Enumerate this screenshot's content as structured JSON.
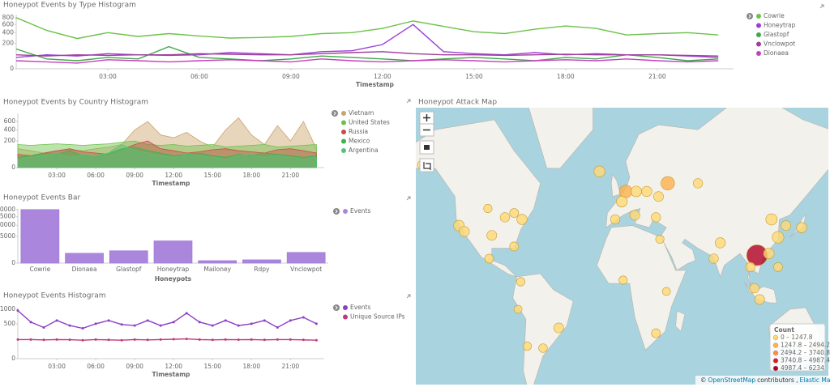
{
  "chart_data": [
    {
      "type": "line",
      "title": "Honeypot Events by Type Histogram",
      "x_label": "Timestamp",
      "scale": "sqrt",
      "x": [
        0,
        1,
        2,
        3,
        4,
        5,
        6,
        7,
        8,
        9,
        10,
        11,
        12,
        13,
        14,
        15,
        16,
        17,
        18,
        19,
        20,
        21,
        22,
        23
      ],
      "xlim": [
        0,
        23.5
      ],
      "xticks": [
        {
          "value": 3,
          "label": "03:00"
        },
        {
          "value": 6,
          "label": "06:00"
        },
        {
          "value": 9,
          "label": "09:00"
        },
        {
          "value": 12,
          "label": "12:00"
        },
        {
          "value": 15,
          "label": "15:00"
        },
        {
          "value": 18,
          "label": "18:00"
        },
        {
          "value": 21,
          "label": "21:00"
        }
      ],
      "ylim": [
        0,
        900
      ],
      "yticks": [
        0,
        200,
        400,
        600,
        800
      ],
      "series": [
        {
          "name": "Cowrie",
          "color": "#6cc24a",
          "values": [
            800,
            450,
            280,
            400,
            320,
            380,
            330,
            290,
            300,
            320,
            380,
            400,
            500,
            700,
            550,
            420,
            380,
            480,
            560,
            500,
            350,
            380,
            400,
            350
          ]
        },
        {
          "name": "Honeytrap",
          "color": "#9d3fd4",
          "values": [
            40,
            60,
            50,
            70,
            60,
            55,
            60,
            80,
            70,
            60,
            90,
            100,
            180,
            600,
            90,
            70,
            60,
            80,
            60,
            70,
            60,
            60,
            50,
            40
          ]
        },
        {
          "name": "Glastopf",
          "color": "#3fa84a",
          "values": [
            120,
            30,
            20,
            40,
            30,
            150,
            40,
            30,
            20,
            30,
            50,
            40,
            30,
            20,
            30,
            40,
            30,
            20,
            40,
            30,
            60,
            40,
            20,
            30
          ]
        },
        {
          "name": "Vnclowpot",
          "color": "#a0409a",
          "values": [
            60,
            50,
            60,
            55,
            60,
            60,
            70,
            65,
            60,
            60,
            70,
            80,
            90,
            70,
            60,
            60,
            55,
            60,
            65,
            60,
            60,
            60,
            55,
            50
          ]
        },
        {
          "name": "Dionaea",
          "color": "#c83fc0",
          "values": [
            20,
            15,
            10,
            25,
            20,
            15,
            20,
            25,
            20,
            15,
            30,
            20,
            15,
            20,
            25,
            20,
            15,
            20,
            25,
            20,
            30,
            20,
            15,
            20
          ]
        }
      ]
    },
    {
      "type": "area",
      "title": "Honeypot Events by Country Histogram",
      "x_label": "Timestamp",
      "scale": "sqrt",
      "x": [
        0,
        1,
        2,
        3,
        4,
        5,
        6,
        7,
        8,
        9,
        10,
        11,
        12,
        13,
        14,
        15,
        16,
        17,
        18,
        19,
        20,
        21,
        22,
        23
      ],
      "xlim": [
        0,
        23.6
      ],
      "xticks": [
        {
          "value": 3,
          "label": "03:00"
        },
        {
          "value": 6,
          "label": "06:00"
        },
        {
          "value": 9,
          "label": "09:00"
        },
        {
          "value": 12,
          "label": "12:00"
        },
        {
          "value": 15,
          "label": "15:00"
        },
        {
          "value": 18,
          "label": "18:00"
        },
        {
          "value": 21,
          "label": "21:00"
        }
      ],
      "ylim": [
        0,
        830
      ],
      "yticks": [
        0,
        200,
        400,
        600
      ],
      "series": [
        {
          "name": "Vietnam",
          "color": "#c9a46a",
          "values": [
            100,
            80,
            60,
            70,
            90,
            80,
            100,
            120,
            150,
            400,
            600,
            300,
            250,
            350,
            200,
            120,
            400,
            700,
            300,
            150,
            500,
            200,
            600,
            100
          ]
        },
        {
          "name": "United States",
          "color": "#6cc04a",
          "values": [
            150,
            140,
            150,
            160,
            150,
            140,
            150,
            160,
            180,
            200,
            150,
            140,
            150,
            130,
            140,
            150,
            120,
            130,
            140,
            150,
            120,
            130,
            140,
            150
          ]
        },
        {
          "name": "Russia",
          "color": "#c94c4c",
          "values": [
            50,
            40,
            60,
            80,
            100,
            70,
            60,
            50,
            90,
            150,
            200,
            100,
            80,
            60,
            70,
            90,
            100,
            80,
            70,
            60,
            90,
            100,
            80,
            60
          ]
        },
        {
          "name": "Mexico",
          "color": "#3cb44b",
          "values": [
            30,
            40,
            60,
            50,
            80,
            40,
            30,
            60,
            100,
            120,
            80,
            60,
            40,
            50,
            60,
            40,
            30,
            50,
            40,
            60,
            50,
            40,
            30,
            40
          ]
        },
        {
          "name": "Argentina",
          "color": "#57c17b",
          "values": [
            20,
            30,
            40,
            60,
            30,
            50,
            40,
            60,
            150,
            80,
            60,
            40,
            30,
            50,
            40,
            30,
            20,
            40,
            50,
            30,
            40,
            30,
            20,
            30
          ]
        }
      ]
    },
    {
      "type": "bar",
      "title": "Honeypot Events Bar",
      "x_label": "Honeypots",
      "scale": "sqrt",
      "categories": [
        "Cowrie",
        "Dionaea",
        "Glastopf",
        "Honeytrap",
        "Mailoney",
        "Rdpy",
        "Vnclowpot"
      ],
      "ylim": [
        0,
        20500
      ],
      "yticks": [
        0,
        5000,
        10000,
        15000,
        20000
      ],
      "series": [
        {
          "name": "Events",
          "color": "#ab86dd",
          "values": [
            20000,
            680,
            1065,
            3450,
            43,
            76,
            800
          ]
        }
      ]
    },
    {
      "type": "line",
      "title": "Honeypot Events Histogram",
      "x_label": "Timestamp",
      "scale": "sqrt",
      "markers": true,
      "x": [
        0,
        1,
        2,
        3,
        4,
        5,
        6,
        7,
        8,
        9,
        10,
        11,
        12,
        13,
        14,
        15,
        16,
        17,
        18,
        19,
        20,
        21,
        22,
        23
      ],
      "xlim": [
        0,
        23.6
      ],
      "xticks": [
        {
          "value": 3,
          "label": "03:00"
        },
        {
          "value": 6,
          "label": "06:00"
        },
        {
          "value": 9,
          "label": "09:00"
        },
        {
          "value": 12,
          "label": "12:00"
        },
        {
          "value": 15,
          "label": "15:00"
        },
        {
          "value": 18,
          "label": "18:00"
        },
        {
          "value": 21,
          "label": "21:00"
        }
      ],
      "ylim": [
        0,
        1070
      ],
      "yticks": [
        0,
        500,
        1000
      ],
      "series": [
        {
          "name": "Events",
          "color": "#8c3fc4",
          "values": [
            950,
            550,
            400,
            600,
            450,
            380,
            500,
            600,
            480,
            450,
            600,
            450,
            550,
            850,
            550,
            450,
            600,
            450,
            500,
            600,
            400,
            600,
            700,
            500
          ]
        },
        {
          "name": "Unique Source IPs",
          "color": "#c2387a",
          "values": [
            150,
            150,
            145,
            150,
            148,
            140,
            150,
            145,
            140,
            150,
            145,
            150,
            155,
            160,
            150,
            145,
            150,
            148,
            150,
            145,
            150,
            150,
            145,
            140
          ]
        }
      ]
    }
  ],
  "map": {
    "title": "Honeypot Attack Map",
    "legend": {
      "title": "Count",
      "ranges": [
        {
          "from": 0,
          "to": 1247.8,
          "label": "0 – 1247.8",
          "color": "#fed976"
        },
        {
          "from": 1247.8,
          "to": 2494.2,
          "label": "1247.8 – 2494.2",
          "color": "#feb24c"
        },
        {
          "from": 2494.2,
          "to": 3740.8,
          "label": "2494.2 – 3740.8",
          "color": "#fd8d3c"
        },
        {
          "from": 3740.8,
          "to": 4987.4,
          "label": "3740.8 – 4987.4",
          "color": "#e31a1c"
        },
        {
          "from": 4987.4,
          "to": 6234,
          "label": "4987.4 – 6234",
          "color": "#b10026"
        }
      ]
    },
    "points": [
      {
        "lon": -122,
        "lat": 37,
        "count": 800
      },
      {
        "lon": -118,
        "lat": 34,
        "count": 700
      },
      {
        "lon": -97,
        "lat": 32,
        "count": 600
      },
      {
        "lon": -87,
        "lat": 41,
        "count": 500
      },
      {
        "lon": -74,
        "lat": 40,
        "count": 700
      },
      {
        "lon": -80,
        "lat": 26,
        "count": 400
      },
      {
        "lon": -100,
        "lat": 45,
        "count": 300
      },
      {
        "lon": -80,
        "lat": 43,
        "count": 400
      },
      {
        "lon": -99,
        "lat": 19,
        "count": 400
      },
      {
        "lon": -75,
        "lat": 5,
        "count": 300
      },
      {
        "lon": -46,
        "lat": -23,
        "count": 600
      },
      {
        "lon": -58,
        "lat": -34,
        "count": 350
      },
      {
        "lon": -70,
        "lat": -33,
        "count": 300
      },
      {
        "lon": -77,
        "lat": -12,
        "count": 250
      },
      {
        "lon": -150,
        "lat": 61,
        "count": 500
      },
      {
        "lon": -15,
        "lat": 59,
        "count": 900
      },
      {
        "lon": 5,
        "lat": 52,
        "count": 1500
      },
      {
        "lon": 2,
        "lat": 48,
        "count": 900
      },
      {
        "lon": 13,
        "lat": 52,
        "count": 800
      },
      {
        "lon": -3,
        "lat": 40,
        "count": 500
      },
      {
        "lon": 12,
        "lat": 42,
        "count": 600
      },
      {
        "lon": 37,
        "lat": 55,
        "count": 1800
      },
      {
        "lon": 21,
        "lat": 52,
        "count": 700
      },
      {
        "lon": 30,
        "lat": 50,
        "count": 600
      },
      {
        "lon": 28,
        "lat": 41,
        "count": 500
      },
      {
        "lon": 31,
        "lat": 30,
        "count": 300
      },
      {
        "lon": 3,
        "lat": 6,
        "count": 300
      },
      {
        "lon": 28,
        "lat": -26,
        "count": 400
      },
      {
        "lon": 36,
        "lat": -1,
        "count": 250
      },
      {
        "lon": 77,
        "lat": 28,
        "count": 700
      },
      {
        "lon": 72,
        "lat": 19,
        "count": 500
      },
      {
        "lon": 105,
        "lat": 21,
        "count": 6000
      },
      {
        "lon": 116,
        "lat": 40,
        "count": 1000
      },
      {
        "lon": 121,
        "lat": 31,
        "count": 1100
      },
      {
        "lon": 114,
        "lat": 22,
        "count": 800
      },
      {
        "lon": 127,
        "lat": 37,
        "count": 600
      },
      {
        "lon": 139,
        "lat": 36,
        "count": 700
      },
      {
        "lon": 100,
        "lat": 14,
        "count": 500
      },
      {
        "lon": 107,
        "lat": -6,
        "count": 600
      },
      {
        "lon": 121,
        "lat": 14,
        "count": 400
      },
      {
        "lon": 103,
        "lat": 1,
        "count": 500
      },
      {
        "lon": 151,
        "lat": -34,
        "count": 400
      },
      {
        "lon": 60,
        "lat": 55,
        "count": 500
      }
    ],
    "attribution": {
      "copy": "©",
      "osm": "OpenStreetMap",
      "mid": "contributors ,",
      "ems": "Elastic Maps Service"
    }
  }
}
